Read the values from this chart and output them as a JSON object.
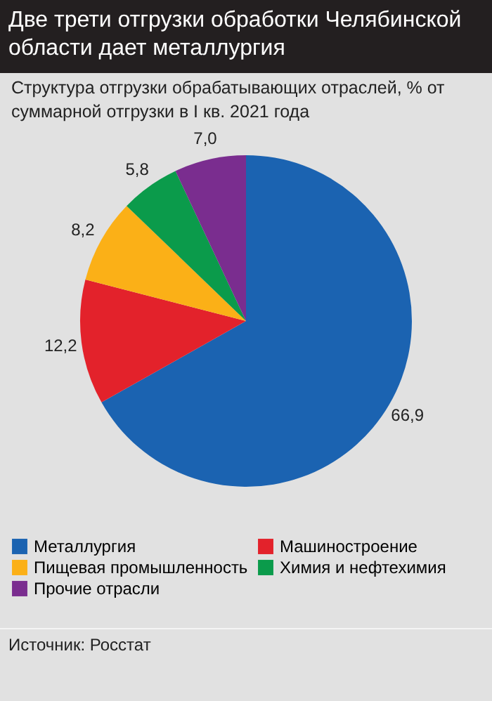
{
  "chart_data": {
    "type": "pie",
    "title": "Две трети отгрузки обработки Челябинской области дает металлургия",
    "subtitle": "Структура отгрузки обрабатывающих отраслей, % от суммарной отгрузки в I кв. 2021 года",
    "categories": [
      "Металлургия",
      "Машиностроение",
      "Пищевая промышленность",
      "Химия и нефтехимия",
      "Прочие отрасли"
    ],
    "values": [
      66.9,
      12.2,
      8.2,
      5.8,
      7.0
    ],
    "value_labels": [
      "66,9",
      "12,2",
      "8,2",
      "5,8",
      "7,0"
    ],
    "colors": [
      "#1b63b1",
      "#e3222b",
      "#fbb017",
      "#0b9b4b",
      "#7a2d8f"
    ],
    "legend": "bottom",
    "annotations": [
      "Источник: Росстат"
    ]
  }
}
